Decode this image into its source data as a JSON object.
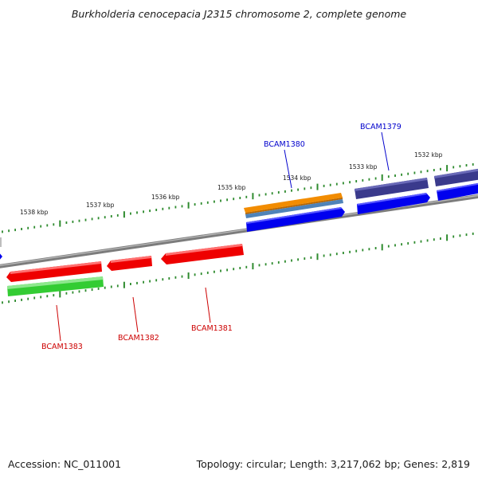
{
  "title": "Burkholderia cenocepacia J2315 chromosome 2, complete genome",
  "footer": {
    "accession": "Accession: NC_011001",
    "info": "Topology: circular; Length: 3,217,062 bp; Genes: 2,819"
  },
  "colors": {
    "backbone": "#8a8a8a",
    "scale_ticks": "#2e8b2e",
    "forward_cds": "#0000ee",
    "reverse_cds": "#ee0000",
    "forward_label": "#0000cc",
    "reverse_label": "#cc0000",
    "orange_feature": "#f28c00",
    "steelblue_feature": "#4f83b8",
    "purple_feature": "#3a3a8c",
    "green_feature": "#33cc33"
  },
  "scale_labels": [
    "1538 kbp",
    "1537 kbp",
    "1536 kbp",
    "1535 kbp",
    "1534 kbp",
    "1533 kbp",
    "1532 kbp"
  ],
  "genes": [
    {
      "name": "BCAM1380",
      "strand": "forward"
    },
    {
      "name": "BCAM1379",
      "strand": "forward"
    },
    {
      "name": "BCAM1383",
      "strand": "reverse"
    },
    {
      "name": "BCAM1382",
      "strand": "reverse"
    },
    {
      "name": "BCAM1381",
      "strand": "reverse"
    }
  ]
}
